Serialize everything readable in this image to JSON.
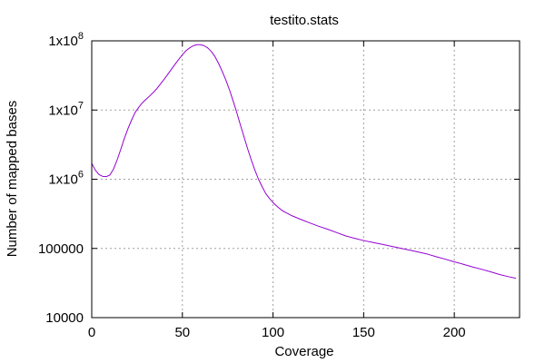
{
  "chart_data": {
    "type": "line",
    "title": "testito.stats",
    "xlabel": "Coverage",
    "ylabel": "Number of mapped bases",
    "xlim": [
      0,
      236
    ],
    "ylim": [
      10000,
      100000000
    ],
    "yscale": "log",
    "grid": true,
    "x_ticks": [
      {
        "value": 0,
        "label": "0"
      },
      {
        "value": 50,
        "label": "50"
      },
      {
        "value": 100,
        "label": "100"
      },
      {
        "value": 150,
        "label": "150"
      },
      {
        "value": 200,
        "label": "200"
      }
    ],
    "y_ticks": [
      {
        "value": 10000,
        "label": "10000",
        "sup": ""
      },
      {
        "value": 100000,
        "label": "100000",
        "sup": ""
      },
      {
        "value": 1000000,
        "label": "1x10",
        "sup": "6"
      },
      {
        "value": 10000000,
        "label": "1x10",
        "sup": "7"
      },
      {
        "value": 100000000,
        "label": "1x10",
        "sup": "8"
      }
    ],
    "series": [
      {
        "color": "#9400d3",
        "x": [
          0,
          2,
          4,
          6,
          8,
          10,
          12,
          14,
          16,
          18,
          20,
          22,
          24,
          26,
          28,
          30,
          32,
          34,
          36,
          38,
          40,
          42,
          44,
          46,
          48,
          50,
          52,
          54,
          56,
          58,
          60,
          62,
          64,
          66,
          68,
          70,
          72,
          74,
          76,
          78,
          80,
          82,
          84,
          86,
          88,
          90,
          92,
          94,
          96,
          98,
          100,
          102,
          104,
          106,
          108,
          110,
          115,
          120,
          125,
          130,
          135,
          140,
          145,
          150,
          155,
          160,
          165,
          170,
          175,
          180,
          185,
          190,
          195,
          200,
          205,
          210,
          215,
          220,
          225,
          230,
          234
        ],
        "y": [
          1700000,
          1350000,
          1170000,
          1100000,
          1090000,
          1150000,
          1400000,
          1900000,
          2700000,
          3900000,
          5400000,
          7200000,
          9300000,
          11000000,
          12800000,
          14300000,
          16000000,
          18000000,
          20500000,
          24000000,
          28000000,
          33000000,
          39000000,
          46000000,
          54000000,
          63000000,
          72000000,
          79000000,
          85000000,
          88000000,
          88000000,
          85000000,
          79000000,
          70000000,
          59000000,
          47000000,
          36000000,
          27000000,
          19500000,
          13500000,
          9200000,
          6100000,
          4100000,
          2750000,
          1900000,
          1350000,
          1000000,
          780000,
          620000,
          530000,
          460000,
          410000,
          370000,
          340000,
          320000,
          300000,
          265000,
          235000,
          210000,
          190000,
          170000,
          152000,
          140000,
          130000,
          122000,
          115000,
          108000,
          101000,
          95000,
          89000,
          83000,
          76000,
          70000,
          64000,
          59000,
          54000,
          50000,
          46000,
          42000,
          39000,
          37000
        ]
      }
    ]
  }
}
